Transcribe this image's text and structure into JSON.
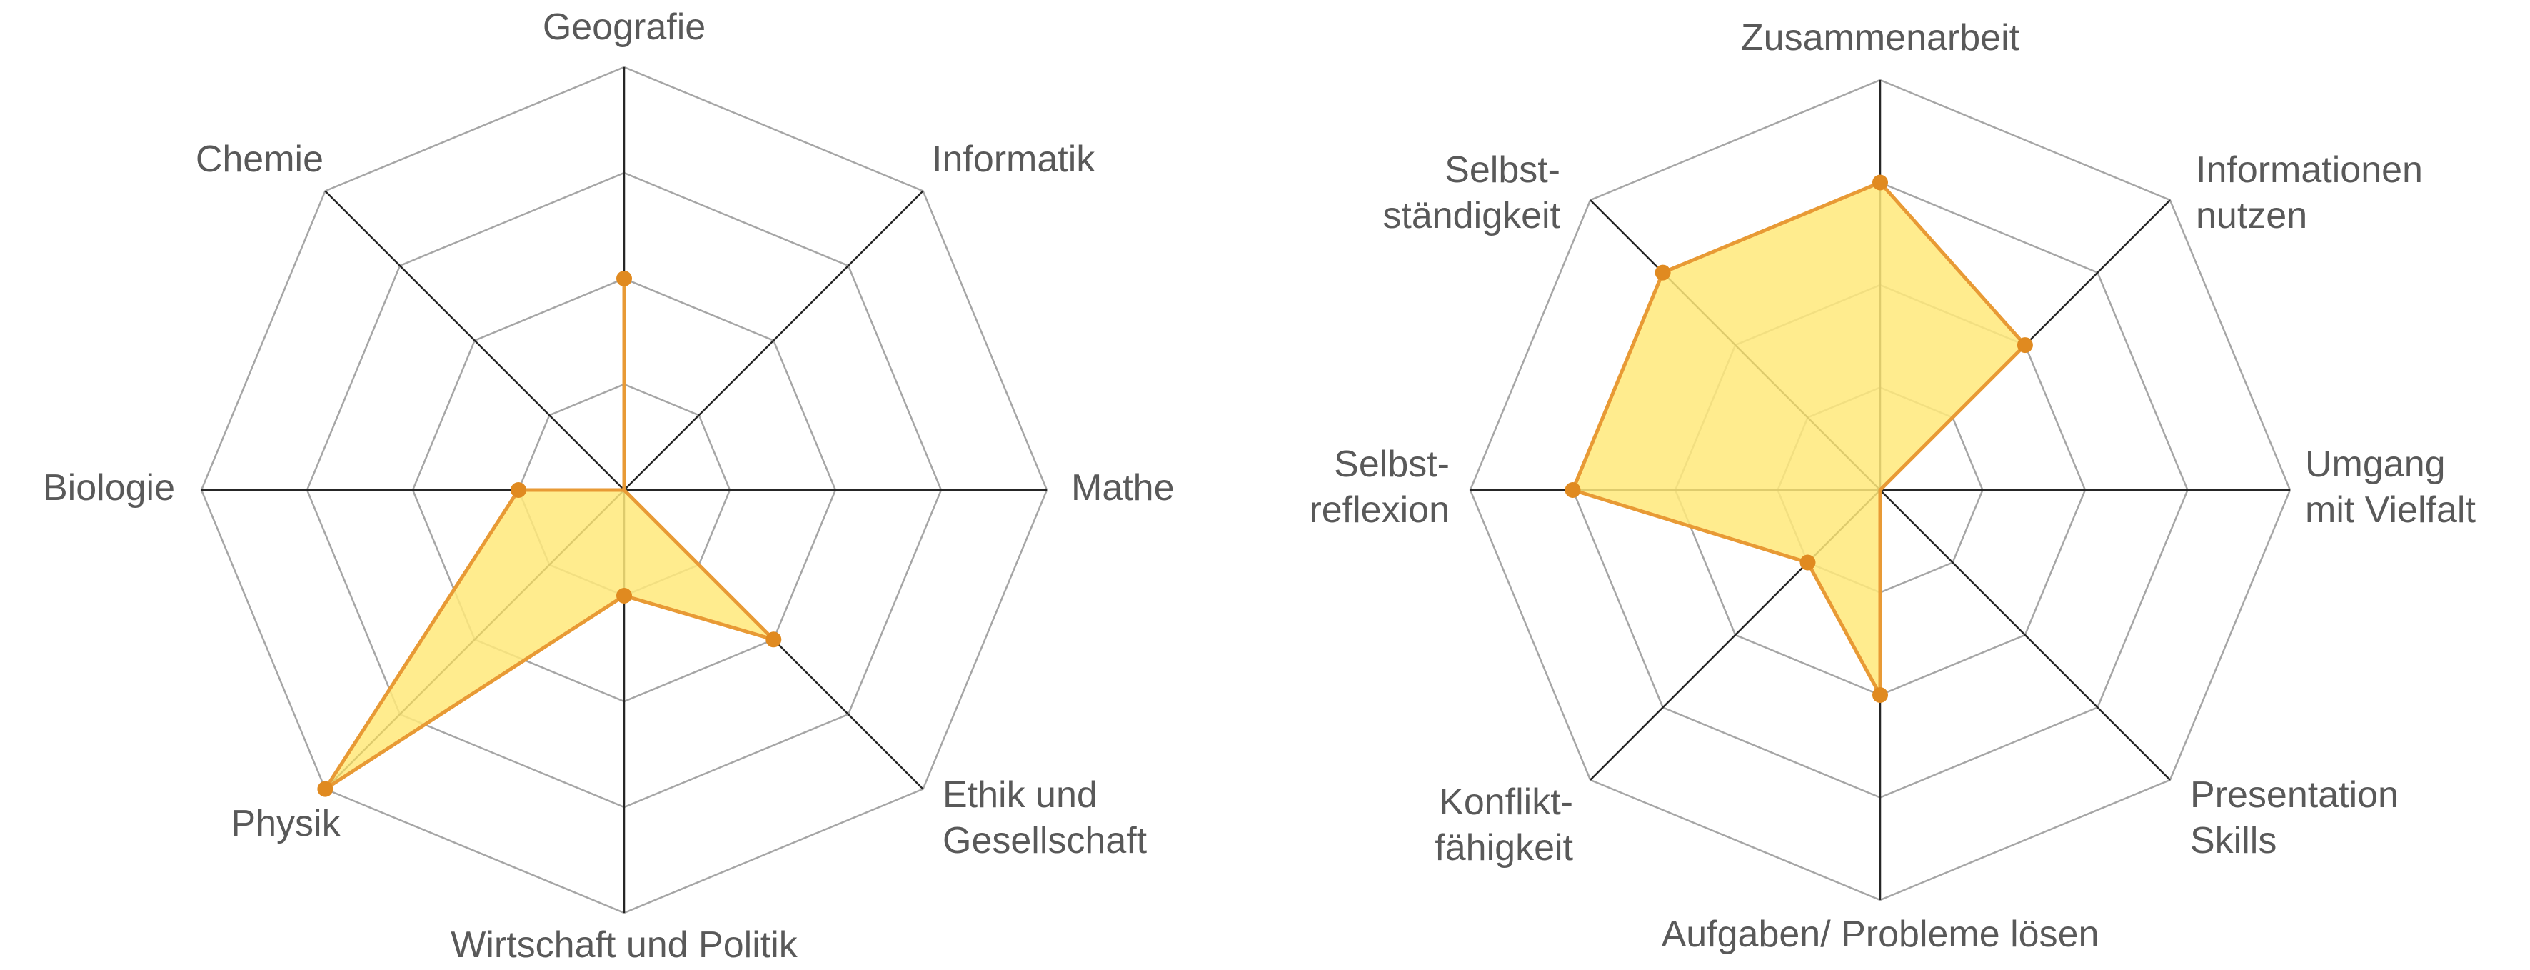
{
  "chart_data": [
    {
      "type": "radar",
      "axes": [
        "Geografie",
        "Informatik",
        "Mathe",
        "Ethik und Gesellschaft",
        "Wirtschaft und Politik",
        "Physik",
        "Biologie",
        "Chemie"
      ],
      "axis_label_lines": [
        [
          "Geografie"
        ],
        [
          "Informatik"
        ],
        [
          "Mathe"
        ],
        [
          "Ethik und",
          "Gesellschaft"
        ],
        [
          "Wirtschaft und Politik"
        ],
        [
          "Physik"
        ],
        [
          "Biologie"
        ],
        [
          "Chemie"
        ]
      ],
      "levels": 4,
      "rmax": 4,
      "values": [
        2,
        0,
        0,
        2,
        1,
        4,
        1,
        0
      ],
      "grid": true,
      "legend": "none"
    },
    {
      "type": "radar",
      "axes": [
        "Zusammenarbeit",
        "Informationen nutzen",
        "Umgang mit Vielfalt",
        "Presentation Skills",
        "Aufgaben/ Probleme lösen",
        "Konflikt-fähigkeit",
        "Selbst-reflexion",
        "Selbst-ständigkeit"
      ],
      "axis_label_lines": [
        [
          "Zusammenarbeit"
        ],
        [
          "Informationen",
          "nutzen"
        ],
        [
          "Umgang",
          "mit Vielfalt"
        ],
        [
          "Presentation",
          "Skills"
        ],
        [
          "Aufgaben/ Probleme lösen"
        ],
        [
          "Konflikt-",
          "fähigkeit"
        ],
        [
          "Selbst-",
          "reflexion"
        ],
        [
          "Selbst-",
          "ständigkeit"
        ]
      ],
      "levels": 4,
      "rmax": 4,
      "values": [
        3,
        2,
        0,
        0,
        2,
        1,
        3,
        3
      ],
      "grid": true,
      "legend": "none"
    }
  ],
  "colors": {
    "fill": "#ffe97a",
    "line": "#e89a35",
    "marker": "#e08a20",
    "grid": "#a6a6a6",
    "spoke": "#262626",
    "text": "#595959"
  }
}
